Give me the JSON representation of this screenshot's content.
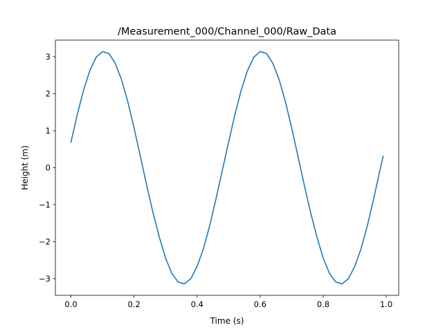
{
  "chart_data": {
    "type": "line",
    "title": "/Measurement_000/Channel_000/Raw_Data",
    "xlabel": "Time (s)",
    "ylabel": "Height (m)",
    "xlim": [
      -0.0495,
      1.0395
    ],
    "ylim": [
      -3.45,
      3.45
    ],
    "xticks": [
      0.0,
      0.2,
      0.4,
      0.6,
      0.8,
      1.0
    ],
    "xtick_labels": [
      "0.0",
      "0.2",
      "0.4",
      "0.6",
      "0.8",
      "1.0"
    ],
    "yticks": [
      -3,
      -2,
      -1,
      0,
      1,
      2,
      3
    ],
    "ytick_labels": [
      "−3",
      "−2",
      "−1",
      "0",
      "1",
      "2",
      "3"
    ],
    "grid": false,
    "legend": "none",
    "series_color": "#1f77b4",
    "series": [
      {
        "x": [
          0.0,
          0.02,
          0.04,
          0.06,
          0.08,
          0.1,
          0.12,
          0.14,
          0.16,
          0.18,
          0.2,
          0.22,
          0.24,
          0.26,
          0.28,
          0.3,
          0.32,
          0.34,
          0.36,
          0.38,
          0.4,
          0.42,
          0.44,
          0.46,
          0.48,
          0.5,
          0.52,
          0.54,
          0.56,
          0.58,
          0.6,
          0.62,
          0.64,
          0.66,
          0.68,
          0.7,
          0.72,
          0.74,
          0.76,
          0.78,
          0.8,
          0.82,
          0.84,
          0.86,
          0.88,
          0.9,
          0.92,
          0.94,
          0.96,
          0.98,
          0.99
        ],
        "y": [
          0.69,
          1.44,
          2.1,
          2.63,
          2.99,
          3.14,
          3.09,
          2.83,
          2.39,
          1.79,
          1.08,
          0.31,
          -0.47,
          -1.21,
          -1.87,
          -2.44,
          -2.86,
          -3.09,
          -3.14,
          -3.0,
          -2.67,
          -2.19,
          -1.57,
          -0.84,
          -0.07,
          0.69,
          1.44,
          2.1,
          2.63,
          2.99,
          3.14,
          3.09,
          2.83,
          2.39,
          1.79,
          1.08,
          0.31,
          -0.47,
          -1.21,
          -1.87,
          -2.44,
          -2.86,
          -3.09,
          -3.14,
          -3.0,
          -2.67,
          -2.19,
          -1.57,
          -0.84,
          -0.07,
          0.31
        ]
      }
    ]
  }
}
